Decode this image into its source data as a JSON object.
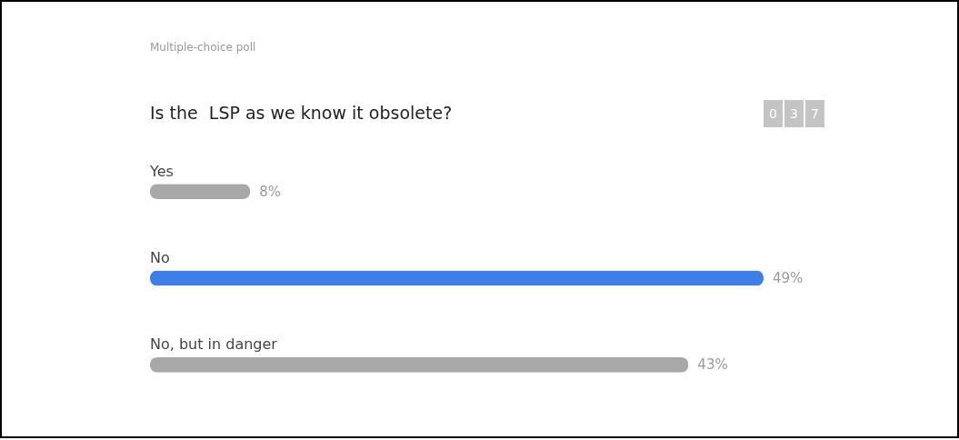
{
  "chart_data": {
    "type": "bar",
    "orientation": "horizontal",
    "subtitle": "Multiple-choice poll",
    "title": "Is the  LSP as we know it obsolete?",
    "annotations": [
      "0 3 7"
    ],
    "categories": [
      "Yes",
      "No",
      "No, but in danger"
    ],
    "values": [
      8,
      49,
      43
    ],
    "value_labels": [
      "8%",
      "49%",
      "43%"
    ],
    "colors": [
      "#a8a8a8",
      "#3f7de9",
      "#a8a8a8"
    ]
  }
}
